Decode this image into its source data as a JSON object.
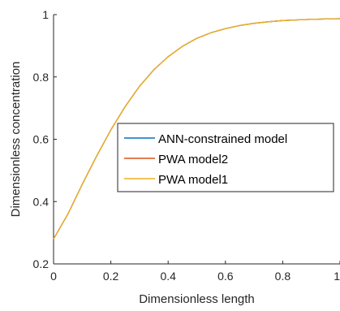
{
  "chart_data": {
    "type": "line",
    "xlabel": "Dimensionless length",
    "ylabel": "Dimensionless concentration",
    "xlim": [
      0,
      1
    ],
    "ylim": [
      0.2,
      1
    ],
    "x_ticks": [
      "0",
      "0.2",
      "0.4",
      "0.6",
      "0.8",
      "1"
    ],
    "y_ticks": [
      "0.2",
      "0.4",
      "0.6",
      "0.8",
      "1"
    ],
    "grid": false,
    "legend_position": "center",
    "x": [
      0,
      0.05,
      0.1,
      0.15,
      0.2,
      0.25,
      0.3,
      0.35,
      0.4,
      0.45,
      0.5,
      0.55,
      0.6,
      0.65,
      0.7,
      0.75,
      0.8,
      0.85,
      0.9,
      0.95,
      1.0
    ],
    "series": [
      {
        "name": "ANN-constrained model",
        "color": "#0072BD",
        "values": [
          0.28,
          0.36,
          0.455,
          0.545,
          0.63,
          0.705,
          0.77,
          0.823,
          0.865,
          0.898,
          0.924,
          0.942,
          0.955,
          0.965,
          0.972,
          0.977,
          0.981,
          0.983,
          0.985,
          0.986,
          0.987
        ]
      },
      {
        "name": "PWA model2",
        "color": "#D95319",
        "values": [
          0.28,
          0.36,
          0.455,
          0.545,
          0.63,
          0.705,
          0.77,
          0.823,
          0.865,
          0.898,
          0.924,
          0.942,
          0.955,
          0.965,
          0.972,
          0.977,
          0.981,
          0.983,
          0.985,
          0.986,
          0.987
        ]
      },
      {
        "name": "PWA model1",
        "color": "#EDB120",
        "values": [
          0.28,
          0.36,
          0.455,
          0.545,
          0.63,
          0.705,
          0.77,
          0.823,
          0.865,
          0.898,
          0.924,
          0.942,
          0.955,
          0.965,
          0.972,
          0.977,
          0.981,
          0.983,
          0.985,
          0.986,
          0.987
        ]
      }
    ]
  }
}
